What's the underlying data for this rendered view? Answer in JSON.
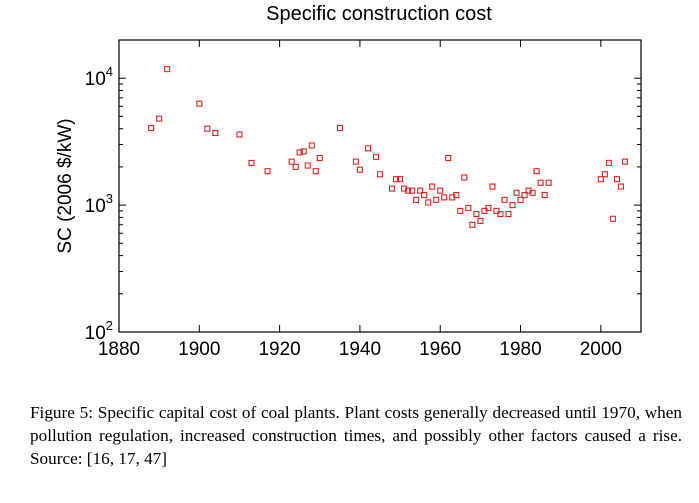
{
  "chart_data": {
    "type": "scatter",
    "title": "Specific construction cost",
    "xlabel": "",
    "ylabel": "SC (2006 $/kW)",
    "xlim": [
      1880,
      2010
    ],
    "ylim": [
      100,
      20000
    ],
    "yscale": "log",
    "grid": false,
    "legend": "none",
    "xticks": [
      1880,
      1900,
      1920,
      1940,
      1960,
      1980,
      2000
    ],
    "xtick_labels": [
      "1880",
      "1900",
      "1920",
      "1940",
      "1960",
      "1980",
      "2000"
    ],
    "yticks": [
      {
        "value": 100,
        "base": "10",
        "exp": "2"
      },
      {
        "value": 1000,
        "base": "10",
        "exp": "3"
      },
      {
        "value": 10000,
        "base": "10",
        "exp": "4"
      }
    ],
    "marker_color": "#dd2222",
    "series": [
      {
        "points": [
          [
            1888,
            4050
          ],
          [
            1890,
            4800
          ],
          [
            1892,
            11800
          ],
          [
            1900,
            6300
          ],
          [
            1902,
            4000
          ],
          [
            1904,
            3700
          ],
          [
            1910,
            3600
          ],
          [
            1913,
            2150
          ],
          [
            1917,
            1850
          ],
          [
            1923,
            2200
          ],
          [
            1924,
            2000
          ],
          [
            1925,
            2600
          ],
          [
            1926,
            2650
          ],
          [
            1927,
            2050
          ],
          [
            1928,
            2950
          ],
          [
            1929,
            1850
          ],
          [
            1930,
            2350
          ],
          [
            1935,
            4050
          ],
          [
            1939,
            2200
          ],
          [
            1940,
            1900
          ],
          [
            1942,
            2800
          ],
          [
            1944,
            2400
          ],
          [
            1945,
            1750
          ],
          [
            1948,
            1350
          ],
          [
            1949,
            1600
          ],
          [
            1950,
            1600
          ],
          [
            1951,
            1350
          ],
          [
            1952,
            1300
          ],
          [
            1953,
            1300
          ],
          [
            1954,
            1100
          ],
          [
            1955,
            1300
          ],
          [
            1956,
            1200
          ],
          [
            1957,
            1050
          ],
          [
            1958,
            1400
          ],
          [
            1959,
            1100
          ],
          [
            1960,
            1300
          ],
          [
            1961,
            1150
          ],
          [
            1962,
            2350
          ],
          [
            1963,
            1150
          ],
          [
            1964,
            1200
          ],
          [
            1965,
            900
          ],
          [
            1966,
            1650
          ],
          [
            1967,
            950
          ],
          [
            1968,
            700
          ],
          [
            1969,
            850
          ],
          [
            1970,
            750
          ],
          [
            1971,
            900
          ],
          [
            1972,
            950
          ],
          [
            1973,
            1400
          ],
          [
            1974,
            900
          ],
          [
            1975,
            850
          ],
          [
            1976,
            1100
          ],
          [
            1977,
            850
          ],
          [
            1978,
            1000
          ],
          [
            1979,
            1250
          ],
          [
            1980,
            1100
          ],
          [
            1981,
            1200
          ],
          [
            1982,
            1300
          ],
          [
            1983,
            1250
          ],
          [
            1984,
            1850
          ],
          [
            1985,
            1500
          ],
          [
            1986,
            1200
          ],
          [
            1987,
            1500
          ],
          [
            2000,
            1600
          ],
          [
            2001,
            1750
          ],
          [
            2002,
            2150
          ],
          [
            2003,
            780
          ],
          [
            2004,
            1600
          ],
          [
            2005,
            1400
          ],
          [
            2006,
            2200
          ]
        ]
      }
    ]
  },
  "caption": {
    "text": "Figure 5: Specific capital cost of coal plants. Plant costs generally decreased until 1970, when pollution regulation, increased construction times, and possibly other factors caused a rise. Source: [16, 17, 47]"
  }
}
